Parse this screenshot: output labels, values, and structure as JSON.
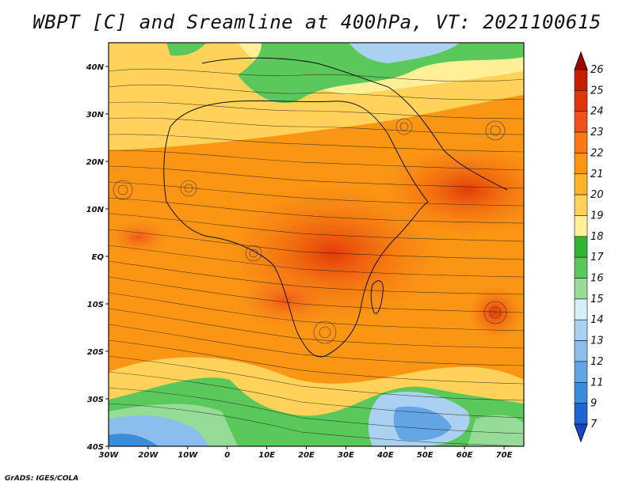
{
  "title": "WBPT [C] and Sreamline at 400hPa, VT: 2021100615",
  "footer": "GrADS: IGES/COLA",
  "map": {
    "lon_labels": [
      "30W",
      "20W",
      "10W",
      "0",
      "10E",
      "20E",
      "30E",
      "40E",
      "50E",
      "60E",
      "70E"
    ],
    "lat_labels": [
      "40N",
      "30N",
      "20N",
      "10N",
      "EQ",
      "10S",
      "20S",
      "30S",
      "40S"
    ],
    "lon_range": [
      -30,
      75
    ],
    "lat_range": [
      -40,
      45
    ]
  },
  "colorbar": {
    "levels": [
      "26",
      "25",
      "24",
      "23",
      "22",
      "21",
      "20",
      "19",
      "18",
      "17",
      "16",
      "15",
      "14",
      "13",
      "12",
      "11",
      "9",
      "7"
    ],
    "colors": [
      "#a50000",
      "#c81e00",
      "#e1360a",
      "#f0501e",
      "#fa7814",
      "#fa9614",
      "#ffb428",
      "#ffd25a",
      "#fff098",
      "#32b432",
      "#5ac85a",
      "#96dc96",
      "#d2f0f5",
      "#aad2f0",
      "#8cbeeb",
      "#64a5e6",
      "#3c8cdc",
      "#1e64d2",
      "#1446c8"
    ]
  },
  "colors": {
    "accent_warm": "#e1360a",
    "accent_cool": "#3c8cdc"
  }
}
